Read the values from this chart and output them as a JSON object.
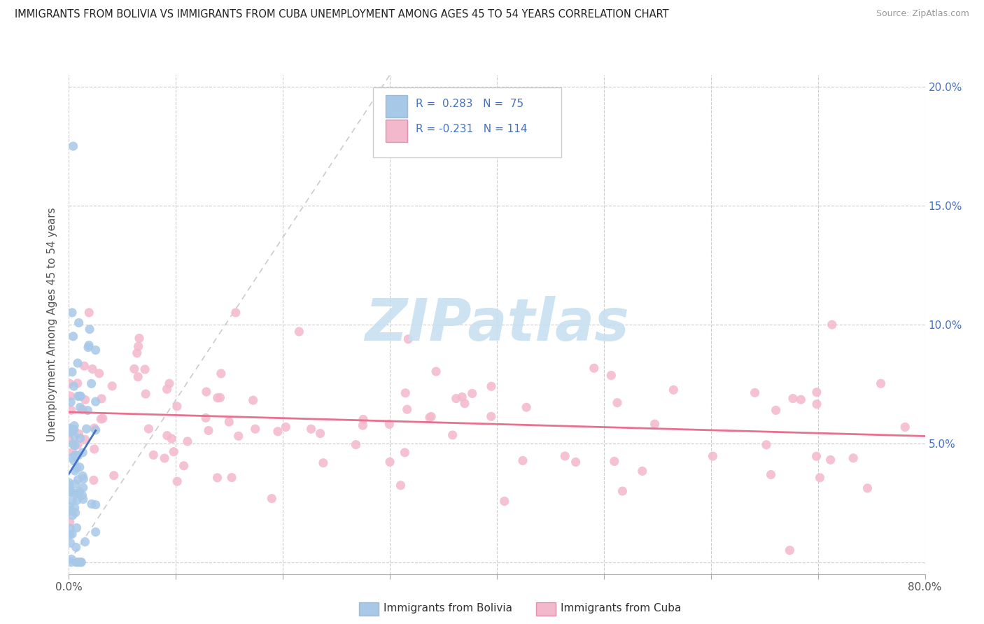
{
  "title": "IMMIGRANTS FROM BOLIVIA VS IMMIGRANTS FROM CUBA UNEMPLOYMENT AMONG AGES 45 TO 54 YEARS CORRELATION CHART",
  "source": "Source: ZipAtlas.com",
  "ylabel": "Unemployment Among Ages 45 to 54 years",
  "xlim": [
    0.0,
    0.8
  ],
  "ylim": [
    -0.005,
    0.205
  ],
  "xticks": [
    0.0,
    0.1,
    0.2,
    0.3,
    0.4,
    0.5,
    0.6,
    0.7,
    0.8
  ],
  "xtick_labels_show": [
    "0.0%",
    "",
    "",
    "",
    "",
    "",
    "",
    "",
    "80.0%"
  ],
  "yticks": [
    0.0,
    0.05,
    0.1,
    0.15,
    0.2
  ],
  "yticklabels_right": [
    "",
    "5.0%",
    "10.0%",
    "15.0%",
    "20.0%"
  ],
  "bolivia_R": 0.283,
  "bolivia_N": 75,
  "cuba_R": -0.231,
  "cuba_N": 114,
  "bolivia_color": "#a8c8e8",
  "bolivia_edge_color": "#a8c8e8",
  "cuba_color": "#f4b8cc",
  "cuba_edge_color": "#f4b8cc",
  "bolivia_line_color": "#4472c4",
  "cuba_line_color": "#e87090",
  "diag_line_color": "#cccccc",
  "grid_color": "#cccccc",
  "right_tick_color": "#4472c4",
  "watermark_color": "#c8e0f0",
  "watermark_text": "ZIPatlas",
  "legend_R_bolivia": "R =  0.283",
  "legend_N_bolivia": "N =  75",
  "legend_R_cuba": "R = -0.231",
  "legend_N_cuba": "N = 114",
  "bottom_legend_bolivia": "Immigrants from Bolivia",
  "bottom_legend_cuba": "Immigrants from Cuba"
}
